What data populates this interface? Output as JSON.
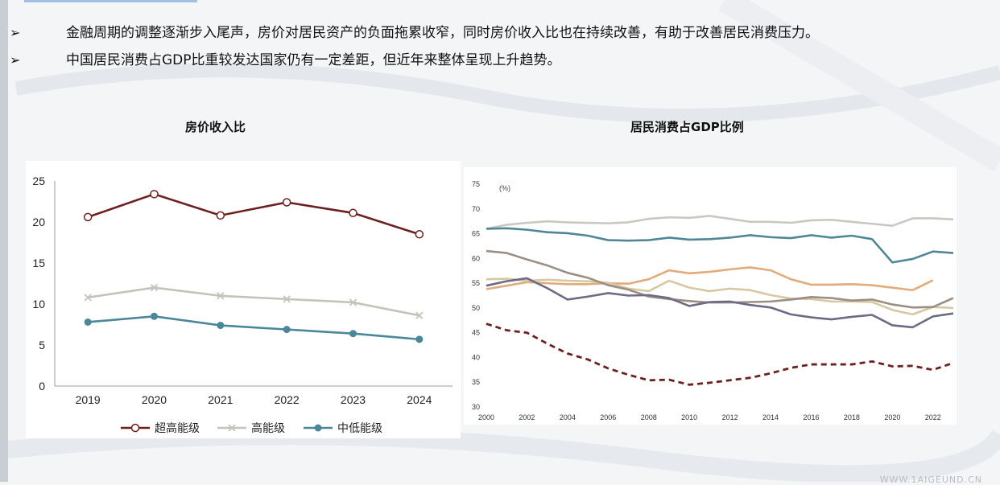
{
  "bullets": [
    {
      "marker": "➢",
      "text": "金融周期的调整逐渐步入尾声，房价对居民资产的负面拖累收窄，同时房价收入比也在持续改善，有助于改善居民消费压力。"
    },
    {
      "marker": "➢",
      "text": "中国居民消费占GDP比重较发达国家仍有一定差距，但近年来整体呈现上升趋势。"
    }
  ],
  "watermark": "WWW.1AIGEUND.CN",
  "chart_data": [
    {
      "type": "line",
      "title": "房价收入比",
      "categories": [
        "2019",
        "2020",
        "2021",
        "2022",
        "2023",
        "2024"
      ],
      "ylim": [
        0,
        25
      ],
      "yticks": [
        0,
        5,
        10,
        15,
        20,
        25
      ],
      "xlabel": "",
      "ylabel": "",
      "legend_position": "bottom",
      "series": [
        {
          "name": "超高能级",
          "values": [
            20.6,
            23.4,
            20.8,
            22.4,
            21.1,
            18.5
          ],
          "color": "#6e1f1f",
          "marker": "circle-open"
        },
        {
          "name": "高能级",
          "values": [
            10.8,
            12.0,
            11.0,
            10.6,
            10.2,
            8.6
          ],
          "color": "#c3c3bb",
          "marker": "x"
        },
        {
          "name": "中低能级",
          "values": [
            7.8,
            8.5,
            7.4,
            6.9,
            6.4,
            5.7
          ],
          "color": "#4a8799",
          "marker": "circle-filled"
        }
      ]
    },
    {
      "type": "line",
      "title": "居民消费占GDP比例",
      "unit_label": "(%)",
      "xlim": [
        2000,
        2023
      ],
      "xticks": [
        2000,
        2002,
        2004,
        2006,
        2008,
        2010,
        2012,
        2014,
        2016,
        2018,
        2020,
        2022
      ],
      "ylim": [
        30,
        75
      ],
      "yticks": [
        30,
        35,
        40,
        45,
        50,
        55,
        60,
        65,
        70,
        75
      ],
      "legend_position": "none",
      "series": [
        {
          "name": "series-grey",
          "color": "#c8c8c3",
          "style": "solid",
          "x": [
            2000,
            2001,
            2002,
            2003,
            2004,
            2005,
            2006,
            2007,
            2008,
            2009,
            2010,
            2011,
            2012,
            2013,
            2014,
            2015,
            2016,
            2017,
            2018,
            2019,
            2020,
            2021,
            2022,
            2023
          ],
          "values": [
            66,
            66.8,
            67.2,
            67.5,
            67.3,
            67.2,
            67.1,
            67.3,
            68,
            68.3,
            68.2,
            68.6,
            68,
            67.4,
            67.4,
            67.2,
            67.7,
            67.8,
            67.4,
            67,
            66.6,
            68.1,
            68.1,
            67.9
          ]
        },
        {
          "name": "series-teal",
          "color": "#4f8797",
          "style": "solid",
          "x": [
            2000,
            2001,
            2002,
            2003,
            2004,
            2005,
            2006,
            2007,
            2008,
            2009,
            2010,
            2011,
            2012,
            2013,
            2014,
            2015,
            2016,
            2017,
            2018,
            2019,
            2020,
            2021,
            2022,
            2023
          ],
          "values": [
            66,
            66.1,
            65.8,
            65.3,
            65.1,
            64.6,
            63.7,
            63.6,
            63.7,
            64.2,
            63.8,
            63.9,
            64.2,
            64.7,
            64.3,
            64.1,
            64.7,
            64.2,
            64.6,
            63.9,
            59.2,
            59.9,
            61.4,
            61.1
          ]
        },
        {
          "name": "series-orange",
          "color": "#e2ab7c",
          "style": "solid",
          "x": [
            2000,
            2001,
            2002,
            2003,
            2004,
            2005,
            2006,
            2007,
            2008,
            2009,
            2010,
            2011,
            2012,
            2013,
            2014,
            2015,
            2016,
            2017,
            2018,
            2019,
            2020,
            2021,
            2022
          ],
          "values": [
            53.8,
            54.5,
            55.2,
            55,
            54.8,
            54.8,
            55,
            54.9,
            55.8,
            57.6,
            57,
            57.3,
            57.8,
            58.2,
            57.6,
            55.8,
            54.7,
            54.7,
            54.8,
            54.6,
            54.1,
            53.6,
            55.6
          ]
        },
        {
          "name": "series-khaki",
          "color": "#d6c8a2",
          "style": "solid",
          "x": [
            2000,
            2001,
            2002,
            2003,
            2004,
            2005,
            2006,
            2007,
            2008,
            2009,
            2010,
            2011,
            2012,
            2013,
            2014,
            2015,
            2016,
            2017,
            2018,
            2019,
            2020,
            2021,
            2022,
            2023
          ],
          "values": [
            55.8,
            55.9,
            55.5,
            55.7,
            55.5,
            55.4,
            55.1,
            53.9,
            53.4,
            55.5,
            54.1,
            53.4,
            53.9,
            53.6,
            52.6,
            51.9,
            51.8,
            51.3,
            51.3,
            51.2,
            49.6,
            48.7,
            50.2,
            50
          ]
        },
        {
          "name": "series-taupe",
          "color": "#9b8e83",
          "style": "solid",
          "x": [
            2000,
            2001,
            2002,
            2003,
            2004,
            2005,
            2006,
            2007,
            2008,
            2009,
            2010,
            2011,
            2012,
            2013,
            2014,
            2015,
            2016,
            2017,
            2018,
            2019,
            2020,
            2021,
            2022,
            2023
          ],
          "values": [
            61.5,
            61.1,
            59.8,
            58.6,
            57.1,
            56.1,
            54.6,
            53.7,
            52.3,
            51.8,
            51.4,
            51.1,
            51.1,
            51.2,
            51.3,
            51.7,
            52.2,
            52,
            51.5,
            51.7,
            50.7,
            50.1,
            50.2,
            52
          ]
        },
        {
          "name": "series-slate",
          "color": "#6c6b84",
          "style": "solid",
          "x": [
            2000,
            2001,
            2002,
            2003,
            2004,
            2005,
            2006,
            2007,
            2008,
            2009,
            2010,
            2011,
            2012,
            2013,
            2014,
            2015,
            2016,
            2017,
            2018,
            2019,
            2020,
            2021,
            2022,
            2023
          ],
          "values": [
            54.5,
            55.4,
            56,
            54,
            51.7,
            52.3,
            53,
            52.5,
            52.6,
            52,
            50.4,
            51.2,
            51.3,
            50.6,
            50.1,
            48.7,
            48.1,
            47.7,
            48.2,
            48.6,
            46.5,
            46.1,
            48.3,
            48.9
          ]
        },
        {
          "name": "series-china",
          "color": "#6b2121",
          "style": "dashed",
          "x": [
            2000,
            2001,
            2002,
            2003,
            2004,
            2005,
            2006,
            2007,
            2008,
            2009,
            2010,
            2011,
            2012,
            2013,
            2014,
            2015,
            2016,
            2017,
            2018,
            2019,
            2020,
            2021,
            2022,
            2023
          ],
          "values": [
            46.8,
            45.5,
            45,
            42.8,
            40.8,
            39.6,
            37.8,
            36.5,
            35.4,
            35.5,
            34.5,
            34.9,
            35.4,
            35.9,
            36.8,
            37.9,
            38.6,
            38.6,
            38.6,
            39.2,
            38.2,
            38.3,
            37.5,
            38.9
          ]
        }
      ]
    }
  ]
}
